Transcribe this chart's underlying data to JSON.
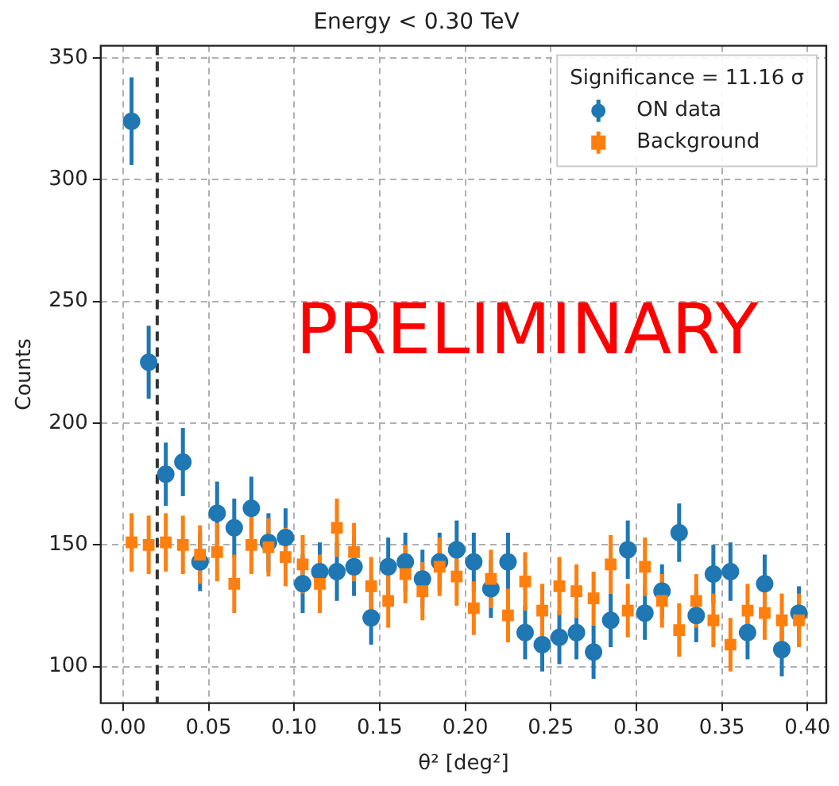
{
  "chart_data": {
    "type": "scatter",
    "title": "Energy < 0.30 TeV",
    "xlabel": "θ² [deg²]",
    "ylabel": "Counts",
    "legend_title": "Significance = 11.16 σ",
    "legend": "top right",
    "grid": true,
    "annotations": [
      "PRELIMINARY"
    ],
    "x": [
      0.005,
      0.015,
      0.025,
      0.035,
      0.045,
      0.055,
      0.065,
      0.075,
      0.085,
      0.095,
      0.105,
      0.115,
      0.125,
      0.135,
      0.145,
      0.155,
      0.165,
      0.175,
      0.185,
      0.195,
      0.205,
      0.215,
      0.225,
      0.235,
      0.245,
      0.255,
      0.265,
      0.275,
      0.285,
      0.295,
      0.305,
      0.315,
      0.325,
      0.335,
      0.345,
      0.355,
      0.365,
      0.375,
      0.385,
      0.395
    ],
    "series": [
      {
        "name": "ON data",
        "color": "#1f77b4",
        "marker": "circle",
        "values": [
          324,
          225,
          179,
          184,
          143,
          163,
          157,
          165,
          151,
          153,
          134,
          139,
          139,
          141,
          120,
          141,
          143,
          136,
          143,
          148,
          143,
          132,
          143,
          114,
          109,
          112,
          114,
          106,
          119,
          148,
          122,
          131,
          155,
          121,
          138,
          139,
          114,
          134,
          107,
          122
        ],
        "errors": [
          18,
          15,
          13,
          14,
          12,
          13,
          12,
          13,
          12,
          12,
          12,
          12,
          12,
          12,
          11,
          12,
          12,
          12,
          12,
          12,
          12,
          12,
          12,
          11,
          11,
          11,
          11,
          11,
          11,
          12,
          11,
          11,
          12,
          11,
          12,
          12,
          11,
          12,
          11,
          11
        ]
      },
      {
        "name": "Background",
        "color": "#ff7f0e",
        "marker": "square",
        "values": [
          151,
          150,
          151,
          150,
          146,
          147,
          134,
          150,
          149,
          145,
          142,
          134,
          157,
          147,
          133,
          127,
          138,
          131,
          141,
          137,
          124,
          136,
          121,
          135,
          123,
          133,
          131,
          128,
          142,
          123,
          141,
          127,
          115,
          127,
          119,
          109,
          123,
          122,
          119,
          119
        ],
        "errors": [
          12,
          12,
          12,
          12,
          12,
          12,
          12,
          12,
          12,
          12,
          12,
          12,
          12,
          12,
          12,
          11,
          12,
          12,
          12,
          12,
          11,
          12,
          11,
          12,
          11,
          12,
          11,
          11,
          12,
          11,
          12,
          11,
          11,
          11,
          11,
          11,
          11,
          11,
          11,
          11
        ]
      }
    ],
    "ref_lines": [
      {
        "axis": "x",
        "value": 0.02,
        "color": "#333333",
        "line_style": "dashed"
      }
    ],
    "xlim": [
      -0.013,
      0.411
    ],
    "ylim": [
      85,
      355
    ],
    "xticks": [
      {
        "value": 0,
        "label": "0.00"
      },
      0.05,
      {
        "value": 0.1,
        "label": "0.10"
      },
      0.15,
      {
        "value": 0.2,
        "label": "0.20"
      },
      0.25,
      {
        "value": 0.3,
        "label": "0.30"
      },
      0.35,
      {
        "value": 0.4,
        "label": "0.40"
      }
    ],
    "yticks": [
      100,
      150,
      200,
      250,
      300,
      350
    ]
  }
}
